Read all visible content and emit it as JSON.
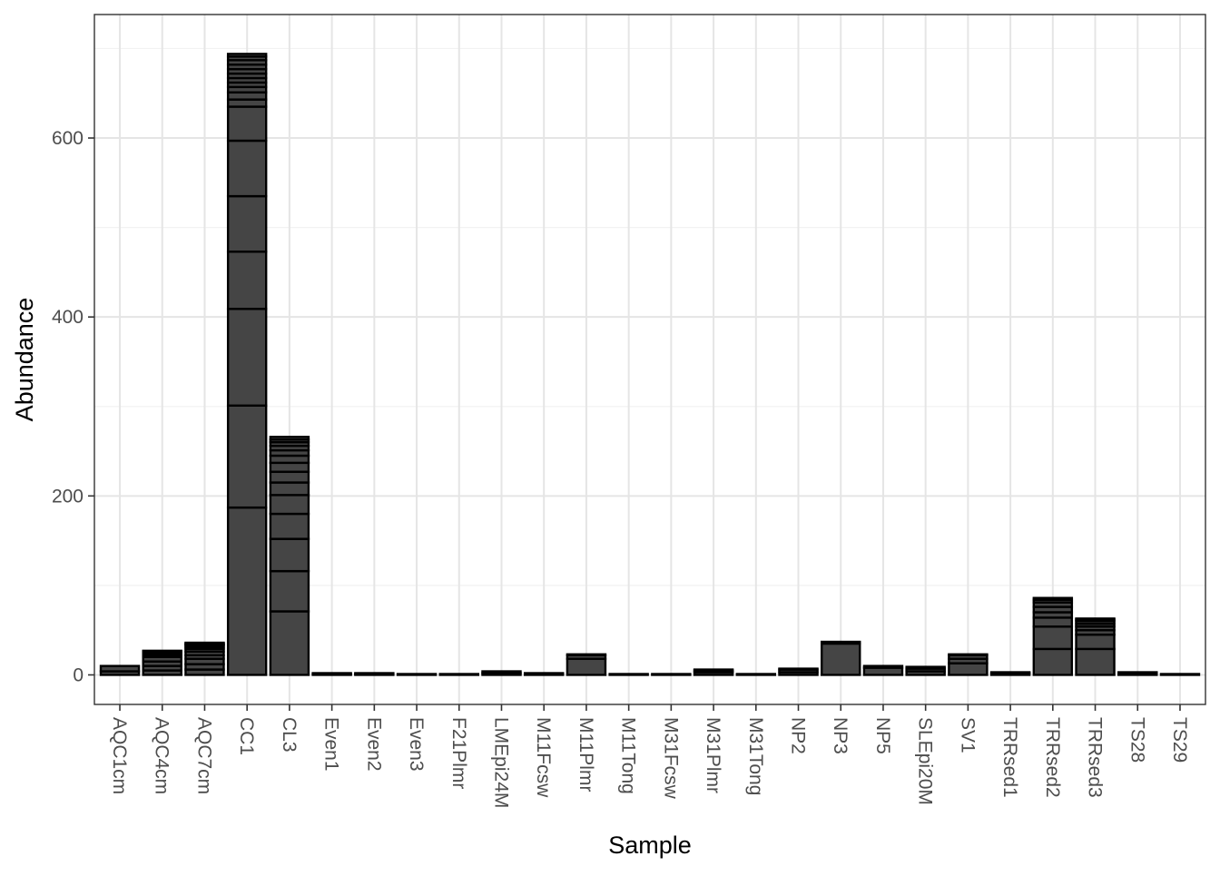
{
  "chart_data": {
    "type": "bar",
    "stacked": true,
    "title": "",
    "xlabel": "Sample",
    "ylabel": "Abundance",
    "ylim": [
      -33,
      738
    ],
    "yticks": [
      0,
      200,
      400,
      600
    ],
    "grid": true,
    "legend": "none",
    "colors": {
      "bar_fill": "#454545",
      "bar_stroke": "#000000",
      "grid_major": "#e5e5e5",
      "grid_minor": "#f2f2f2",
      "panel_border": "#333333",
      "tick_text": "#4d4d4d",
      "axis_title": "#000000"
    },
    "categories": [
      "AQC1cm",
      "AQC4cm",
      "AQC7cm",
      "CC1",
      "CL3",
      "Even1",
      "Even2",
      "Even3",
      "F21Plmr",
      "LMEpi24M",
      "M11Fcsw",
      "M11Plmr",
      "M11Tong",
      "M31Fcsw",
      "M31Plmr",
      "M31Tong",
      "NP2",
      "NP3",
      "NP5",
      "SLEpi20M",
      "SV1",
      "TRRsed1",
      "TRRsed2",
      "TRRsed3",
      "TS28",
      "TS29"
    ],
    "stack_segments": [
      [
        4,
        6
      ],
      [
        5,
        5,
        5,
        5,
        2,
        2,
        1,
        1,
        1
      ],
      [
        6,
        6,
        6,
        4,
        4,
        3,
        2,
        2,
        1,
        1,
        1
      ],
      [
        187,
        114,
        108,
        64,
        62,
        62,
        38,
        8,
        8,
        6,
        5,
        5,
        5,
        5,
        5,
        5,
        4,
        3
      ],
      [
        71,
        45,
        36,
        28,
        21,
        14,
        12,
        10,
        8,
        6,
        5,
        4,
        3,
        3
      ],
      [
        1,
        1
      ],
      [
        1,
        1
      ],
      [
        1
      ],
      [
        1
      ],
      [
        2,
        2
      ],
      [
        1,
        1
      ],
      [
        18,
        4,
        1
      ],
      [
        1
      ],
      [
        1
      ],
      [
        3,
        2,
        1
      ],
      [
        1
      ],
      [
        3,
        3,
        1
      ],
      [
        35,
        2
      ],
      [
        8,
        2
      ],
      [
        4,
        3,
        2
      ],
      [
        13,
        5,
        4,
        1
      ],
      [
        2,
        1
      ],
      [
        29,
        25,
        10,
        6,
        6,
        5,
        3,
        2
      ],
      [
        29,
        16,
        5,
        4,
        3,
        3,
        2,
        1
      ],
      [
        2,
        1
      ],
      [
        1
      ]
    ]
  }
}
